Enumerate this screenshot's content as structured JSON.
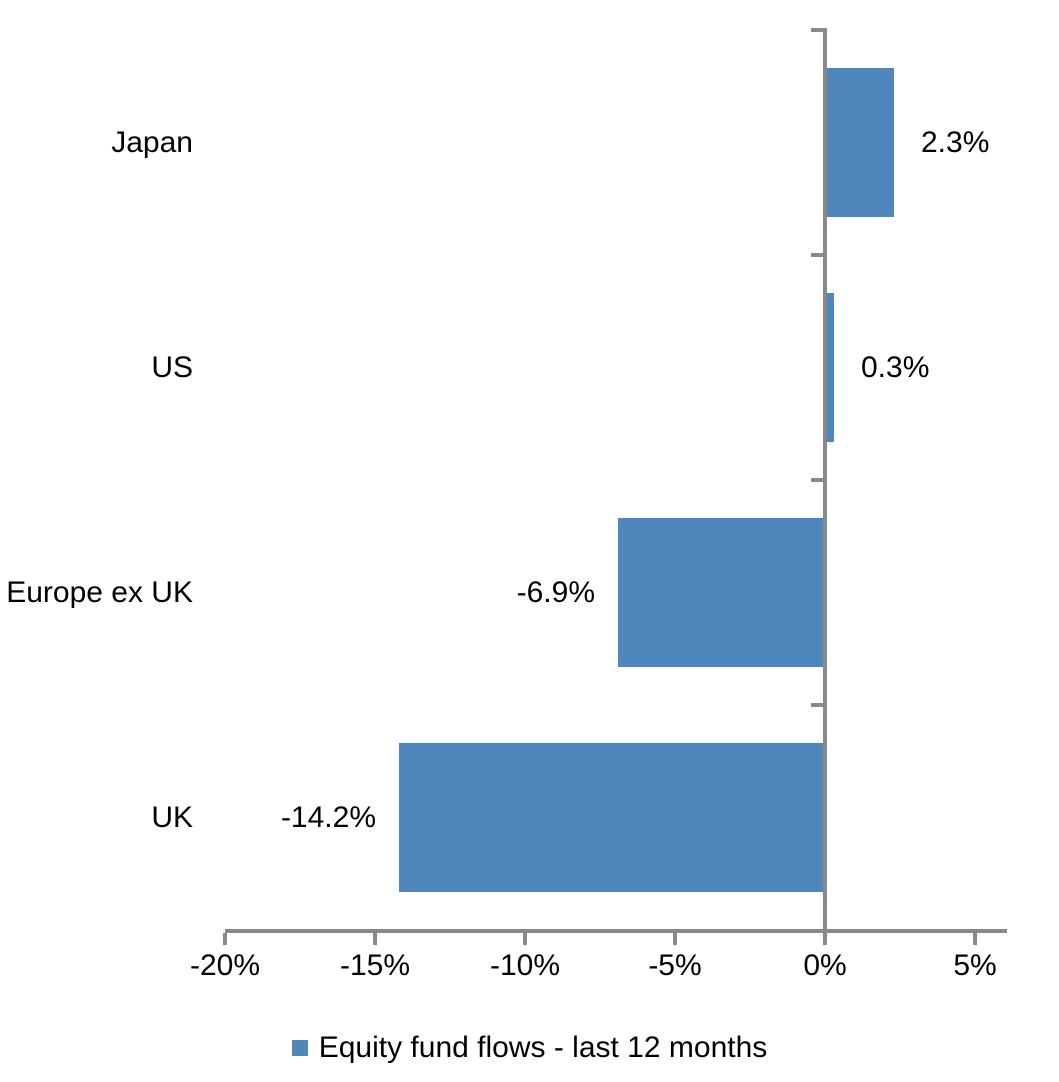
{
  "chart_data": {
    "type": "bar",
    "orientation": "horizontal",
    "title": "",
    "categories": [
      "Japan",
      "US",
      "Europe ex UK",
      "UK"
    ],
    "series": [
      {
        "name": "Equity fund flows - last 12 months",
        "values": [
          2.3,
          0.3,
          -6.9,
          -14.2
        ],
        "data_labels": [
          "2.3%",
          "0.3%",
          "-6.9%",
          "-14.2%"
        ]
      }
    ],
    "x_axis": {
      "tick_values": [
        -20,
        -15,
        -10,
        -5,
        0,
        5
      ],
      "tick_labels": [
        "-20%",
        "-15%",
        "-10%",
        "-5%",
        "0%",
        "5%"
      ],
      "lim": [
        -20,
        6.07
      ],
      "unit": "percent"
    },
    "grid": false,
    "legend": {
      "position": "bottom",
      "label": "Equity fund flows - last 12 months",
      "swatch_color": "#4F86BC"
    },
    "colors": {
      "bar": "#4F86BC",
      "axis": "#898989",
      "text": "#000000",
      "background": "#FFFFFF"
    }
  }
}
